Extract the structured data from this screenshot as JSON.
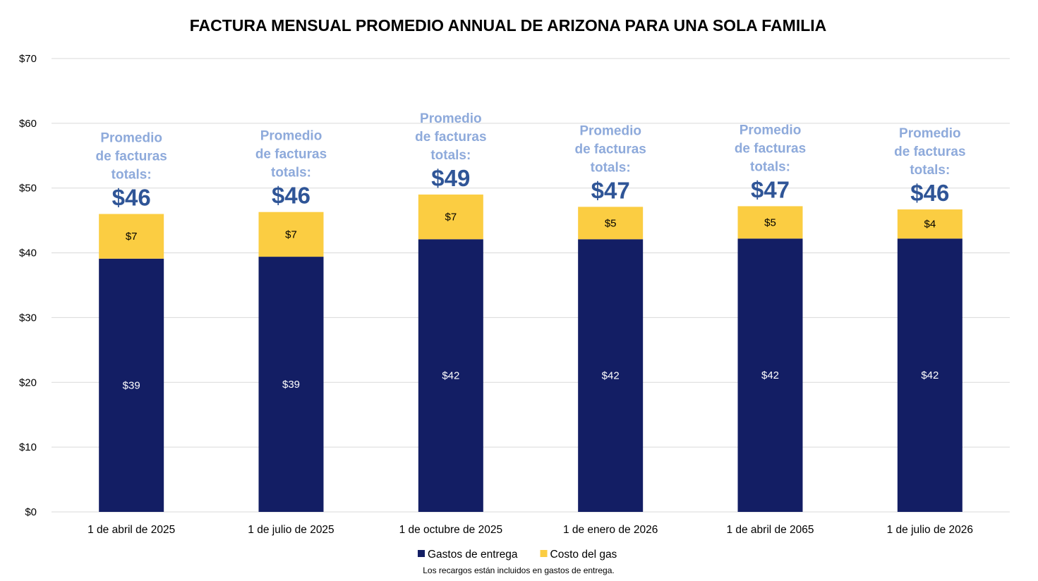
{
  "chart_data": {
    "type": "bar",
    "stacked": true,
    "title": "FACTURA MENSUAL PROMEDIO ANNUAL DE ARIZONA PARA UNA SOLA FAMILIA",
    "xlabel": "",
    "ylabel": "",
    "ylim": [
      0,
      70
    ],
    "ytick_values": [
      0,
      10,
      20,
      30,
      40,
      50,
      60,
      70
    ],
    "ytick_labels": [
      "$0",
      "$10",
      "$20",
      "$30",
      "$40",
      "$50",
      "$60",
      "$70"
    ],
    "grid": true,
    "legend_position": "bottom-center",
    "categories": [
      "1 de abril de 2025",
      "1 de julio de 2025",
      "1 de octubre de 2025",
      "1 de enero de 2026",
      "1 de abril de 2065",
      "1 de julio de 2026"
    ],
    "series": [
      {
        "name": "Gastos de entrega",
        "color": "#131e64",
        "label_color": "#ffffff",
        "values": [
          39.1,
          39.4,
          42.1,
          42.1,
          42.2,
          42.2
        ],
        "labels": [
          "$39",
          "$39",
          "$42",
          "$42",
          "$42",
          "$42"
        ]
      },
      {
        "name": "Costo del gas",
        "color": "#fbcd42",
        "label_color": "#000000",
        "values": [
          6.9,
          6.9,
          6.9,
          5.0,
          5.0,
          4.5
        ],
        "labels": [
          "$7",
          "$7",
          "$7",
          "$5",
          "$5",
          "$4"
        ]
      }
    ],
    "annotations": [
      {
        "line1": "Promedio",
        "line2": "de facturas",
        "line3": "totals:",
        "total": "$46"
      },
      {
        "line1": "Promedio",
        "line2": "de facturas",
        "line3": "totals:",
        "total": "$46"
      },
      {
        "line1": "Promedio",
        "line2": "de facturas",
        "line3": "totals:",
        "total": "$49"
      },
      {
        "line1": "Promedio",
        "line2": "de facturas",
        "line3": "totals:",
        "total": "$47"
      },
      {
        "line1": "Promedio",
        "line2": "de facturas",
        "line3": "totals:",
        "total": "$47"
      },
      {
        "line1": "Promedio",
        "line2": "de facturas",
        "line3": "totals:",
        "total": "$46"
      }
    ],
    "annotation_colors": {
      "promo": "#8eaadb",
      "total": "#2f5597"
    },
    "gridline_color": "#d9d9d9",
    "footnote": "Los recargos están incluidos en gastos de entrega."
  }
}
